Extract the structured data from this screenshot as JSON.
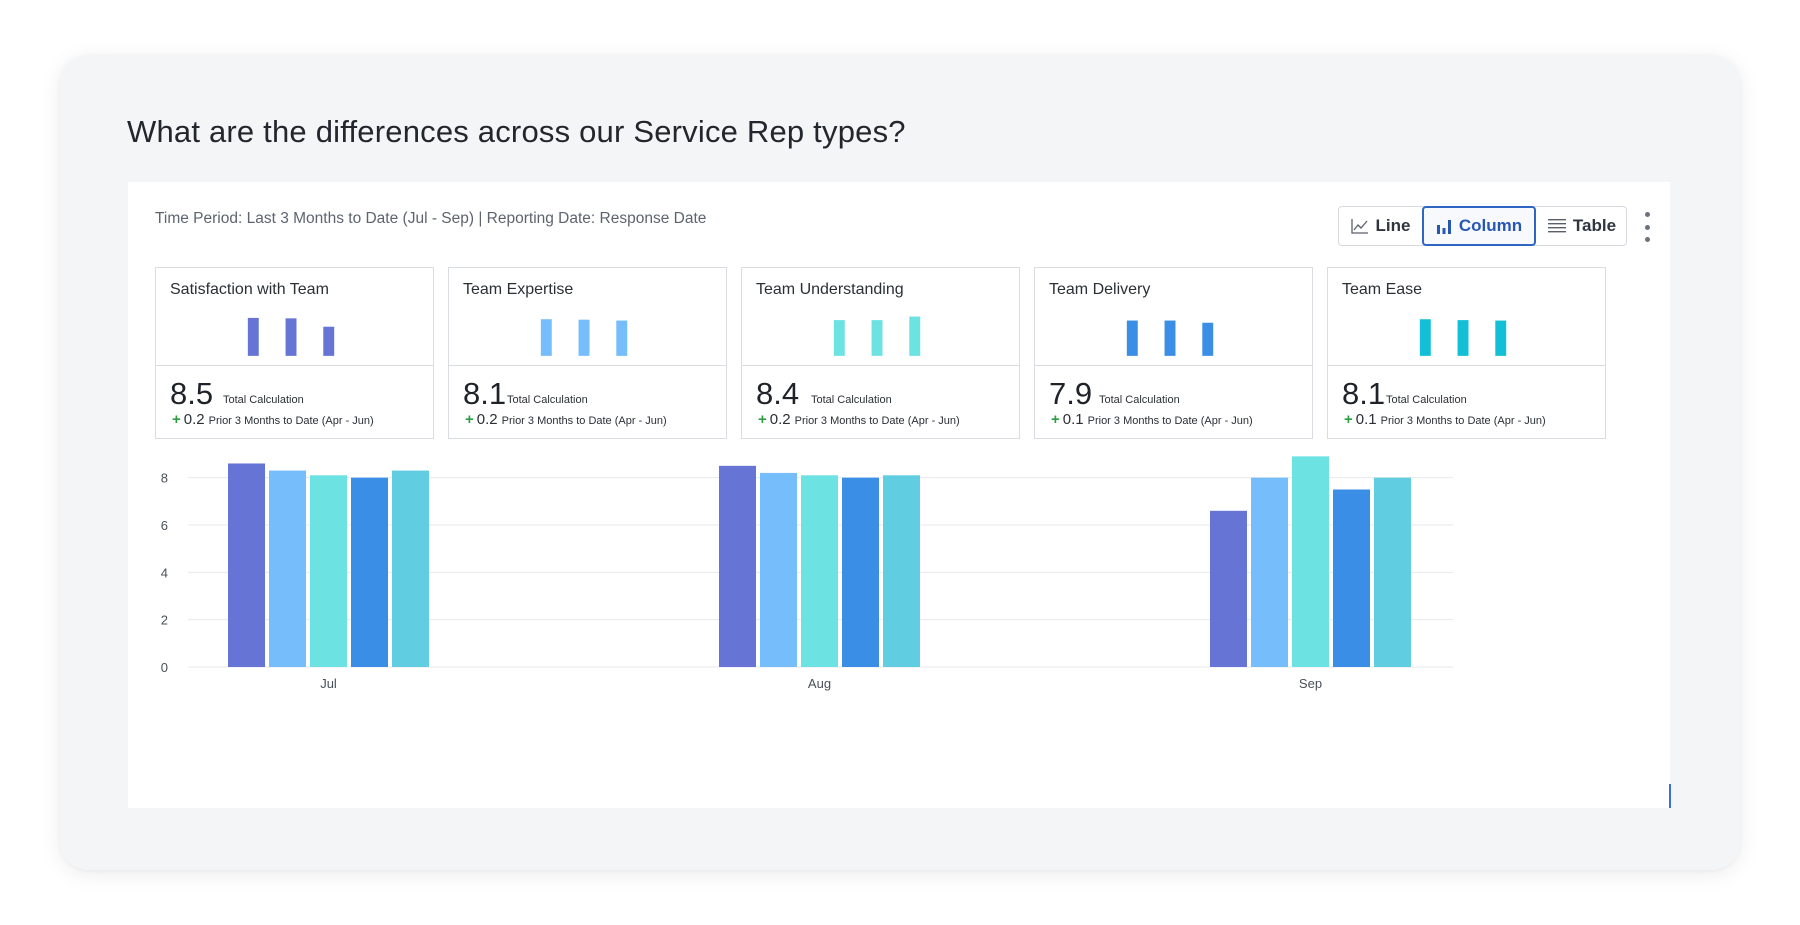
{
  "question": "What are the differences across our Service Rep types?",
  "meta_line": "Time Period: Last 3 Months to Date (Jul - Sep) | Reporting Date: Response Date",
  "view_toggle": {
    "line": "Line",
    "column": "Column",
    "table": "Table",
    "active": "column"
  },
  "metrics": [
    {
      "name": "Satisfaction with Team",
      "value": "8.5",
      "value_label": "Total Calculation",
      "delta": "0.2",
      "prior_label": "Prior 3 Months to Date (Apr - Jun)",
      "color": "#6674d6",
      "spark": [
        8.6,
        8.5,
        6.6
      ]
    },
    {
      "name": "Team Expertise",
      "value": "8.1",
      "value_label": "Total Calculation",
      "delta": "0.2",
      "prior_label": "Prior 3 Months to Date (Apr - Jun)",
      "color": "#76bdfb",
      "spark": [
        8.3,
        8.2,
        8.0
      ]
    },
    {
      "name": "Team Understanding",
      "value": "8.4",
      "value_label": "Total Calculation",
      "delta": "0.2",
      "prior_label": "Prior 3 Months to Date (Apr - Jun)",
      "color": "#6ce2e2",
      "spark": [
        8.1,
        8.1,
        8.9
      ]
    },
    {
      "name": "Team Delivery",
      "value": "7.9",
      "value_label": "Total Calculation",
      "delta": "0.1",
      "prior_label": "Prior 3 Months to Date (Apr - Jun)",
      "color": "#3a8ee6",
      "spark": [
        8.0,
        8.0,
        7.5
      ]
    },
    {
      "name": "Team Ease",
      "value": "8.1",
      "value_label": "Total Calculation",
      "delta": "0.1",
      "prior_label": "Prior 3 Months to Date (Apr - Jun)",
      "color": "#12bfd6",
      "spark": [
        8.3,
        8.1,
        8.0
      ]
    }
  ],
  "chart_data": {
    "type": "bar",
    "categories": [
      "Jul",
      "Aug",
      "Sep"
    ],
    "yticks": [
      0,
      2,
      4,
      6,
      8
    ],
    "ylim": [
      0,
      9
    ],
    "grid": true,
    "series": [
      {
        "name": "Satisfaction with Team",
        "color": "#6674d6",
        "values": [
          8.6,
          8.5,
          6.6
        ]
      },
      {
        "name": "Team Expertise",
        "color": "#76bdfb",
        "values": [
          8.3,
          8.2,
          8.0
        ]
      },
      {
        "name": "Team Understanding",
        "color": "#6ce2e2",
        "values": [
          8.1,
          8.1,
          8.9
        ]
      },
      {
        "name": "Team Delivery",
        "color": "#3a8ee6",
        "values": [
          8.0,
          8.0,
          7.5
        ]
      },
      {
        "name": "Team Ease",
        "color": "#61cde0",
        "values": [
          8.3,
          8.1,
          8.0
        ]
      }
    ]
  }
}
